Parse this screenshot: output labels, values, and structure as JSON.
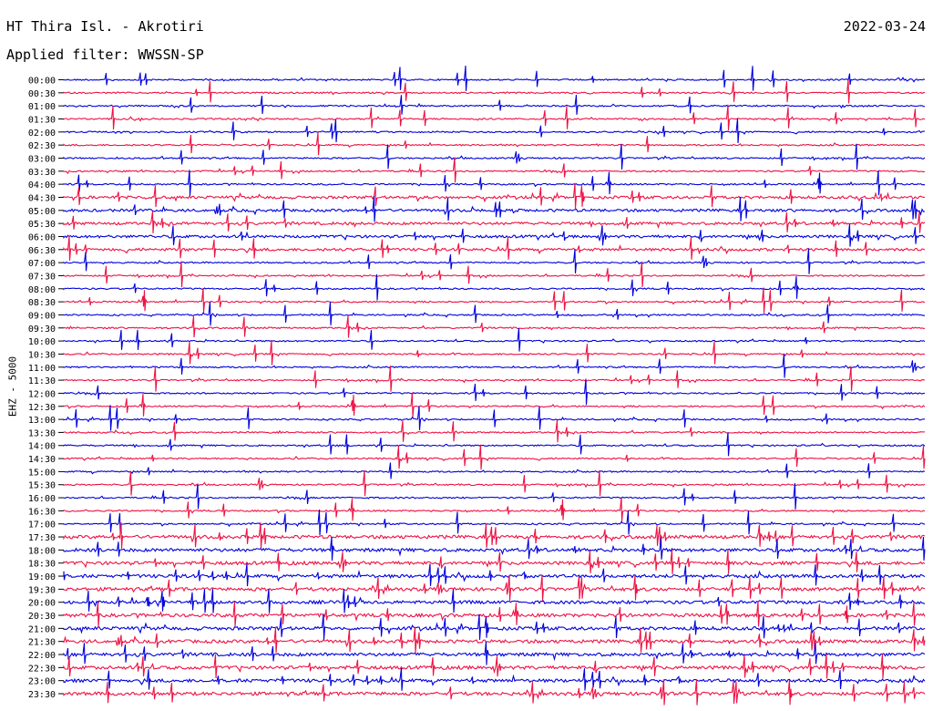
{
  "header": {
    "station": "HT Thira Isl. - Akrotiri",
    "date": "2022-03-24",
    "filter": "Applied filter: WWSSN-SP"
  },
  "axis": {
    "channel_label": "EHZ - 5000"
  },
  "chart_data": {
    "type": "line",
    "title": "HT Thira Isl. - Akrotiri",
    "date": "2022-03-24",
    "filter": "WWSSN-SP",
    "ylabel": "EHZ - 5000",
    "trace_labels": [
      "00:00",
      "00:30",
      "01:00",
      "01:30",
      "02:00",
      "02:30",
      "03:00",
      "03:30",
      "04:00",
      "04:30",
      "05:00",
      "05:30",
      "06:00",
      "06:30",
      "07:00",
      "07:30",
      "08:00",
      "08:30",
      "09:00",
      "09:30",
      "10:00",
      "10:30",
      "11:00",
      "11:30",
      "12:00",
      "12:30",
      "13:00",
      "13:30",
      "14:00",
      "14:30",
      "15:00",
      "15:30",
      "16:00",
      "16:30",
      "17:00",
      "17:30",
      "18:00",
      "18:30",
      "19:00",
      "19:30",
      "20:00",
      "20:30",
      "21:00",
      "21:30",
      "22:00",
      "22:30",
      "23:00",
      "23:30"
    ],
    "colors": [
      "#0000dd",
      "#ee1144"
    ],
    "grid": false
  }
}
